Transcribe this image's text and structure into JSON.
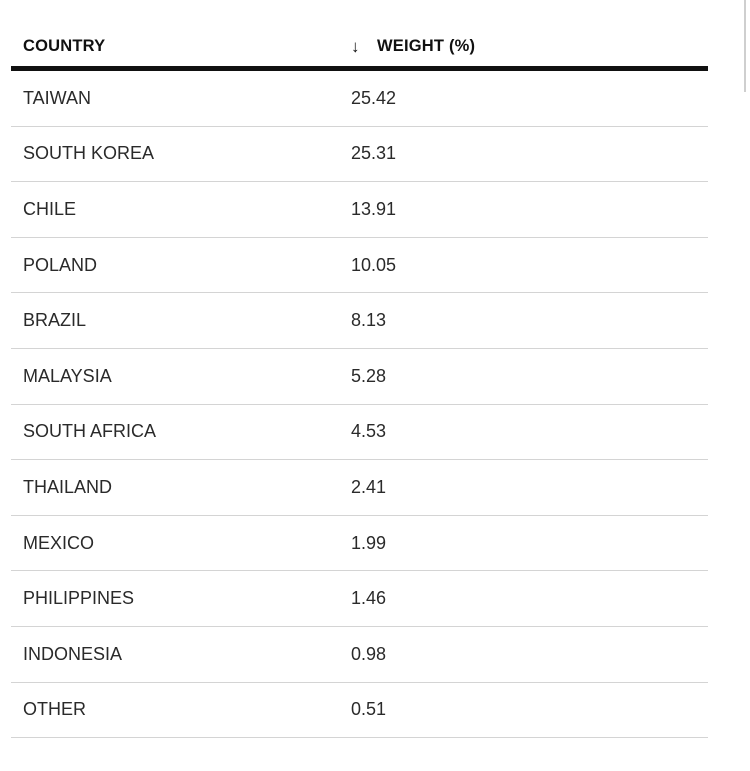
{
  "table": {
    "headers": {
      "country": "COUNTRY",
      "weight": "WEIGHT (%)",
      "sort_icon": "↓"
    },
    "rows": [
      {
        "country": "TAIWAN",
        "weight": "25.42"
      },
      {
        "country": "SOUTH KOREA",
        "weight": "25.31"
      },
      {
        "country": "CHILE",
        "weight": "13.91"
      },
      {
        "country": "POLAND",
        "weight": "10.05"
      },
      {
        "country": "BRAZIL",
        "weight": "8.13"
      },
      {
        "country": "MALAYSIA",
        "weight": "5.28"
      },
      {
        "country": "SOUTH AFRICA",
        "weight": "4.53"
      },
      {
        "country": "THAILAND",
        "weight": "2.41"
      },
      {
        "country": "MEXICO",
        "weight": "1.99"
      },
      {
        "country": "PHILIPPINES",
        "weight": "1.46"
      },
      {
        "country": "INDONESIA",
        "weight": "0.98"
      },
      {
        "country": "OTHER",
        "weight": "0.51"
      }
    ]
  },
  "colors": {
    "header_rule": "#111111",
    "row_divider": "#d4d4d4",
    "text": "#2a2a2a"
  }
}
